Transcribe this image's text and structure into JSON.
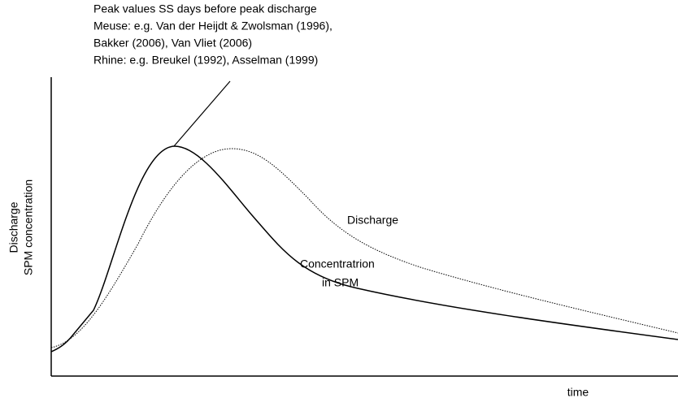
{
  "annotation": [
    "Peak values SS days before peak discharge",
    "Meuse: e.g. Van der Heijdt & Zwolsman (1996),",
    "Bakker (2006), Van Vliet (2006)",
    "Rhine: e.g. Breukel (1992), Asselman (1999)"
  ],
  "y_axis_label": [
    "Discharge",
    "SPM concentration"
  ],
  "x_axis_label": "time",
  "curve_labels": {
    "discharge": "Discharge",
    "concentration": [
      "Concentratrion",
      "in SPM"
    ]
  }
}
